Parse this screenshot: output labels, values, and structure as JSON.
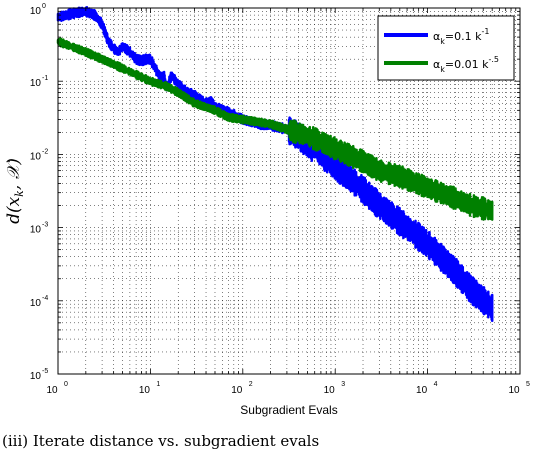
{
  "chart_data": {
    "type": "line",
    "xlabel": "Subgradient Evals",
    "ylabel": "d(x_k, 𝒳)",
    "ylabel_parts": {
      "d": "d(",
      "x": "x",
      "k": "k",
      "sep": ", ",
      "set": "𝒳",
      "close": ")"
    },
    "xscale": "log",
    "yscale": "log",
    "xlim": [
      1,
      100000
    ],
    "ylim": [
      1e-05,
      1
    ],
    "grid": true,
    "legend_position": "top-right",
    "x_tick_labels": [
      {
        "base": "10",
        "exp": "0"
      },
      {
        "base": "10",
        "exp": "1"
      },
      {
        "base": "10",
        "exp": "2"
      },
      {
        "base": "10",
        "exp": "3"
      },
      {
        "base": "10",
        "exp": "4"
      },
      {
        "base": "10",
        "exp": "5"
      }
    ],
    "y_tick_labels": [
      {
        "base": "10",
        "exp": "-5"
      },
      {
        "base": "10",
        "exp": "-4"
      },
      {
        "base": "10",
        "exp": "-3"
      },
      {
        "base": "10",
        "exp": "-2"
      },
      {
        "base": "10",
        "exp": "-1"
      },
      {
        "base": "10",
        "exp": "0"
      }
    ],
    "series": [
      {
        "name": "α_k=0.1 k^-1",
        "legend": {
          "alpha": "α",
          "sub": "k",
          "text": "=0.1 k",
          "sup": "-1"
        },
        "color": "#0000ff",
        "band": 0.25,
        "points": [
          [
            1,
            0.75
          ],
          [
            1.5,
            0.85
          ],
          [
            2,
            0.9
          ],
          [
            2.5,
            0.8
          ],
          [
            3,
            0.6
          ],
          [
            3.5,
            0.35
          ],
          [
            4,
            0.28
          ],
          [
            4.5,
            0.25
          ],
          [
            5,
            0.3
          ],
          [
            6,
            0.25
          ],
          [
            7,
            0.2
          ],
          [
            8,
            0.19
          ],
          [
            9,
            0.2
          ],
          [
            10,
            0.2
          ],
          [
            11,
            0.16
          ],
          [
            12,
            0.13
          ],
          [
            13,
            0.11
          ],
          [
            14,
            0.12
          ],
          [
            15,
            0.08
          ],
          [
            16,
            0.1
          ],
          [
            17,
            0.12
          ],
          [
            20,
            0.09
          ],
          [
            25,
            0.07
          ],
          [
            30,
            0.065
          ],
          [
            35,
            0.055
          ],
          [
            40,
            0.05
          ],
          [
            45,
            0.055
          ],
          [
            50,
            0.045
          ],
          [
            60,
            0.04
          ],
          [
            70,
            0.038
          ],
          [
            80,
            0.035
          ],
          [
            100,
            0.03
          ],
          [
            150,
            0.026
          ],
          [
            200,
            0.025
          ],
          [
            300,
            0.022
          ],
          [
            400,
            0.018
          ],
          [
            500,
            0.014
          ],
          [
            700,
            0.01
          ],
          [
            1000,
            0.007
          ],
          [
            1500,
            0.0045
          ],
          [
            2000,
            0.0033
          ],
          [
            3000,
            0.002
          ],
          [
            5000,
            0.0012
          ],
          [
            10000,
            0.0006
          ],
          [
            20000,
            0.00025
          ],
          [
            30000,
            0.00014
          ],
          [
            50000,
            8e-05
          ]
        ]
      },
      {
        "name": "α_k=0.01 k^-.5",
        "legend": {
          "alpha": "α",
          "sub": "k",
          "text": "=0.01 k",
          "sup": "-.5"
        },
        "color": "#008000",
        "band": 0.2,
        "points": [
          [
            1,
            0.35
          ],
          [
            2,
            0.25
          ],
          [
            3,
            0.2
          ],
          [
            5,
            0.15
          ],
          [
            10,
            0.1
          ],
          [
            15,
            0.085
          ],
          [
            20,
            0.07
          ],
          [
            30,
            0.05
          ],
          [
            50,
            0.04
          ],
          [
            70,
            0.032
          ],
          [
            100,
            0.03
          ],
          [
            200,
            0.026
          ],
          [
            300,
            0.022
          ],
          [
            500,
            0.018
          ],
          [
            700,
            0.015
          ],
          [
            1000,
            0.012
          ],
          [
            2000,
            0.008
          ],
          [
            3000,
            0.006
          ],
          [
            5000,
            0.005
          ],
          [
            10000,
            0.0035
          ],
          [
            20000,
            0.0025
          ],
          [
            30000,
            0.002
          ],
          [
            50000,
            0.0017
          ]
        ]
      }
    ]
  },
  "caption": "(iii) Iterate distance vs. subgradient evals"
}
